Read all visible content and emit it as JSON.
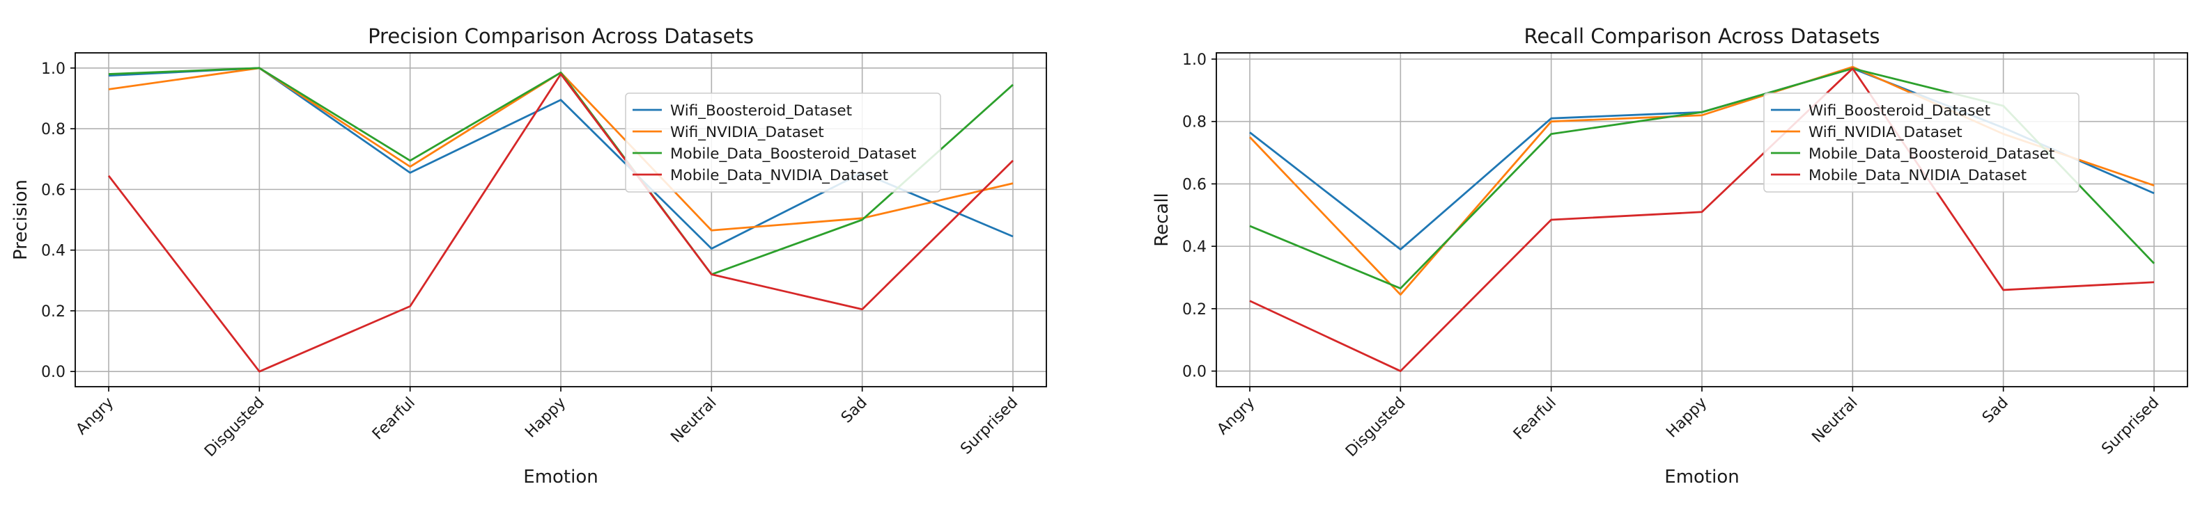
{
  "chart_data": [
    {
      "type": "line",
      "title": "Precision Comparison Across Datasets",
      "xlabel": "Emotion",
      "ylabel": "Precision",
      "categories": [
        "Angry",
        "Disgusted",
        "Fearful",
        "Happy",
        "Neutral",
        "Sad",
        "Surprised"
      ],
      "ylim": [
        -0.05,
        1.05
      ],
      "yticks": [
        "0.0",
        "0.2",
        "0.4",
        "0.6",
        "0.8",
        "1.0"
      ],
      "grid": true,
      "legend_position": "upper right",
      "series": [
        {
          "name": "Wifi_Boosteroid_Dataset",
          "color": "#1f77b4",
          "values": [
            0.975,
            1.0,
            0.655,
            0.895,
            0.405,
            0.655,
            0.445
          ]
        },
        {
          "name": "Wifi_NVIDIA_Dataset",
          "color": "#ff7f0e",
          "values": [
            0.93,
            1.0,
            0.675,
            0.985,
            0.465,
            0.505,
            0.62
          ]
        },
        {
          "name": "Mobile_Data_Boosteroid_Dataset",
          "color": "#2ca02c",
          "values": [
            0.98,
            1.0,
            0.695,
            0.985,
            0.32,
            0.5,
            0.945
          ]
        },
        {
          "name": "Mobile_Data_NVIDIA_Dataset",
          "color": "#d62728",
          "values": [
            0.645,
            0.0,
            0.215,
            0.98,
            0.32,
            0.205,
            0.695
          ]
        }
      ]
    },
    {
      "type": "line",
      "title": "Recall Comparison Across Datasets",
      "xlabel": "Emotion",
      "ylabel": "Recall",
      "categories": [
        "Angry",
        "Disgusted",
        "Fearful",
        "Happy",
        "Neutral",
        "Sad",
        "Surprised"
      ],
      "ylim": [
        -0.05,
        1.02
      ],
      "yticks": [
        "0.0",
        "0.2",
        "0.4",
        "0.6",
        "0.8",
        "1.0"
      ],
      "grid": true,
      "legend_position": "upper right",
      "series": [
        {
          "name": "Wifi_Boosteroid_Dataset",
          "color": "#1f77b4",
          "values": [
            0.765,
            0.39,
            0.81,
            0.83,
            0.97,
            0.78,
            0.57
          ]
        },
        {
          "name": "Wifi_NVIDIA_Dataset",
          "color": "#ff7f0e",
          "values": [
            0.75,
            0.245,
            0.8,
            0.82,
            0.975,
            0.76,
            0.595
          ]
        },
        {
          "name": "Mobile_Data_Boosteroid_Dataset",
          "color": "#2ca02c",
          "values": [
            0.465,
            0.265,
            0.76,
            0.83,
            0.97,
            0.85,
            0.345
          ]
        },
        {
          "name": "Mobile_Data_NVIDIA_Dataset",
          "color": "#d62728",
          "values": [
            0.225,
            0.0,
            0.485,
            0.51,
            0.97,
            0.26,
            0.285
          ]
        }
      ]
    }
  ]
}
